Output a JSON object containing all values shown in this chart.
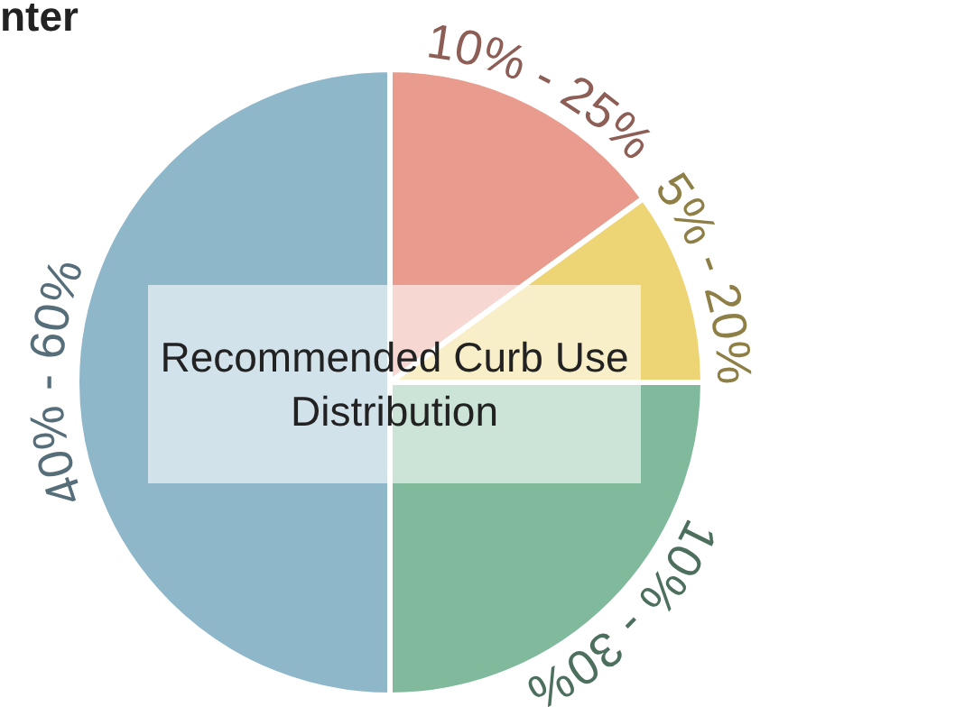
{
  "chart_data": {
    "type": "pie",
    "title": "nter",
    "annotations": [
      "Recommended Curb Use Distribution"
    ],
    "categories": [
      "10% - 25%",
      "5% - 20%",
      "10% - 30%",
      "40% - 60%"
    ],
    "values": [
      15,
      10,
      25,
      50
    ],
    "colors": [
      "#e99c8e",
      "#edd474",
      "#80b99b",
      "#8fb7ca"
    ],
    "legend": false
  }
}
